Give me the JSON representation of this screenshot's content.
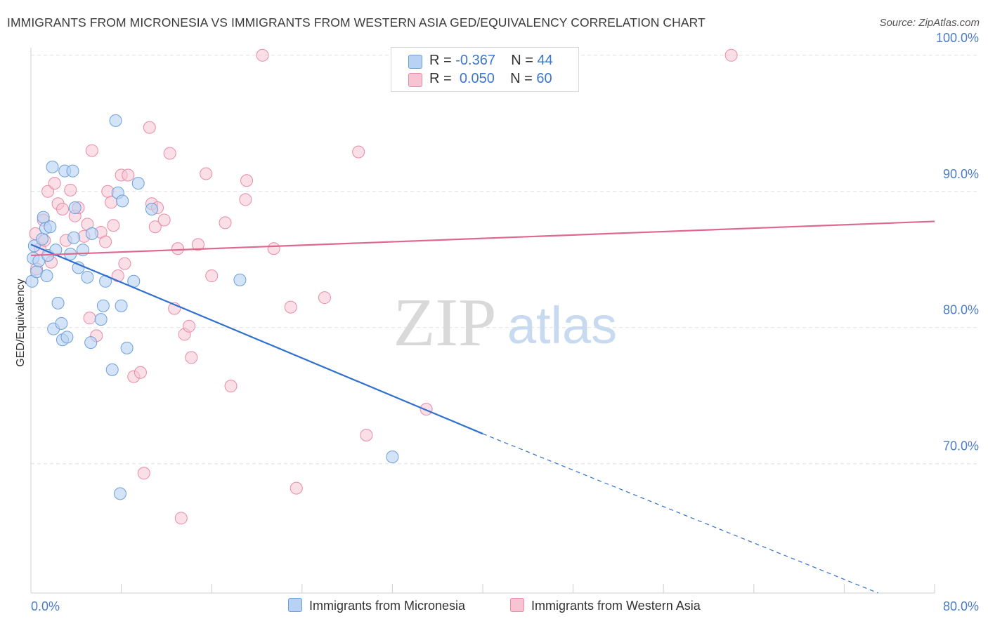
{
  "title": "IMMIGRANTS FROM MICRONESIA VS IMMIGRANTS FROM WESTERN ASIA GED/EQUIVALENCY CORRELATION CHART",
  "source": "Source: ZipAtlas.com",
  "watermark": {
    "zip": "ZIP",
    "atlas": "atlas"
  },
  "legend": {
    "rows": [
      {
        "r_label": "R =",
        "r_value": "-0.367",
        "n_label": "N =",
        "n_value": "44"
      },
      {
        "r_label": "R =",
        "r_value": "0.050",
        "n_label": "N =",
        "n_value": "60"
      }
    ]
  },
  "colors": {
    "blue_fill": "#b8d2f3",
    "blue_stroke": "#6a9fdc",
    "blue_line": "#2f6fcf",
    "pink_fill": "#f8c4d3",
    "pink_stroke": "#e88aa8",
    "pink_line": "#e0688f",
    "grid": "#e0e0e0",
    "tick_text": "#4a7cc7"
  },
  "chart_data": {
    "type": "scatter",
    "title": "IMMIGRANTS FROM MICRONESIA VS IMMIGRANTS FROM WESTERN ASIA GED/EQUIVALENCY CORRELATION CHART",
    "xlabel": "",
    "ylabel": "GED/Equivalency",
    "xlim": [
      0,
      80
    ],
    "ylim": [
      60.5,
      102
    ],
    "x_tick_labels": [
      "0.0%",
      "80.0%"
    ],
    "y_ticks": [
      70,
      80,
      90,
      100
    ],
    "y_tick_labels": [
      "70.0%",
      "80.0%",
      "90.0%",
      "100.0%"
    ],
    "grid": true,
    "legend_position": "top-center",
    "series": [
      {
        "name": "Immigrants from Micronesia",
        "points": [
          [
            0.1,
            83.4
          ],
          [
            0.2,
            85.1
          ],
          [
            0.3,
            86.0
          ],
          [
            0.5,
            84.1
          ],
          [
            0.7,
            84.9
          ],
          [
            1.0,
            86.5
          ],
          [
            1.1,
            88.1
          ],
          [
            1.3,
            87.3
          ],
          [
            1.4,
            83.8
          ],
          [
            1.5,
            85.3
          ],
          [
            1.7,
            87.4
          ],
          [
            1.9,
            91.8
          ],
          [
            2.0,
            79.9
          ],
          [
            2.2,
            85.7
          ],
          [
            2.4,
            81.8
          ],
          [
            2.7,
            80.3
          ],
          [
            2.8,
            79.1
          ],
          [
            3.0,
            91.5
          ],
          [
            3.2,
            79.3
          ],
          [
            3.5,
            85.4
          ],
          [
            3.7,
            91.5
          ],
          [
            3.8,
            86.6
          ],
          [
            3.9,
            88.8
          ],
          [
            4.2,
            84.4
          ],
          [
            4.6,
            85.7
          ],
          [
            5.0,
            83.7
          ],
          [
            5.3,
            78.9
          ],
          [
            5.4,
            86.9
          ],
          [
            6.2,
            80.6
          ],
          [
            6.4,
            81.6
          ],
          [
            6.6,
            83.4
          ],
          [
            7.2,
            76.9
          ],
          [
            7.5,
            95.2
          ],
          [
            7.7,
            89.9
          ],
          [
            7.9,
            67.8
          ],
          [
            8.0,
            81.6
          ],
          [
            8.1,
            89.3
          ],
          [
            8.5,
            78.5
          ],
          [
            9.1,
            83.4
          ],
          [
            9.5,
            90.6
          ],
          [
            10.7,
            88.7
          ],
          [
            18.5,
            83.5
          ],
          [
            32.0,
            70.5
          ],
          [
            42.0,
            100.0
          ]
        ],
        "trend": {
          "x0": 0,
          "y0": 86.1,
          "x_solid_end": 40.0,
          "y_solid_end": 72.2,
          "x1": 75,
          "y1": 60.5
        }
      },
      {
        "name": "Immigrants from Western Asia",
        "points": [
          [
            0.4,
            86.9
          ],
          [
            0.5,
            84.3
          ],
          [
            0.8,
            85.8
          ],
          [
            1.1,
            87.9
          ],
          [
            1.2,
            86.4
          ],
          [
            1.5,
            90.0
          ],
          [
            1.8,
            84.8
          ],
          [
            2.1,
            90.6
          ],
          [
            2.4,
            89.1
          ],
          [
            2.8,
            88.7
          ],
          [
            3.1,
            86.4
          ],
          [
            3.5,
            90.1
          ],
          [
            3.9,
            88.2
          ],
          [
            4.2,
            88.8
          ],
          [
            4.7,
            86.7
          ],
          [
            5.0,
            87.6
          ],
          [
            5.2,
            80.7
          ],
          [
            5.4,
            93.0
          ],
          [
            5.8,
            79.4
          ],
          [
            6.2,
            87.0
          ],
          [
            6.6,
            86.3
          ],
          [
            6.8,
            90.0
          ],
          [
            7.1,
            89.2
          ],
          [
            7.3,
            87.5
          ],
          [
            7.7,
            83.8
          ],
          [
            8.0,
            91.2
          ],
          [
            8.3,
            84.7
          ],
          [
            8.6,
            91.2
          ],
          [
            9.1,
            76.4
          ],
          [
            9.7,
            76.7
          ],
          [
            10.0,
            69.3
          ],
          [
            10.5,
            94.7
          ],
          [
            10.7,
            89.1
          ],
          [
            11.0,
            87.4
          ],
          [
            11.2,
            88.8
          ],
          [
            11.8,
            87.9
          ],
          [
            12.3,
            92.8
          ],
          [
            12.7,
            81.4
          ],
          [
            13.0,
            85.8
          ],
          [
            13.3,
            66.0
          ],
          [
            13.6,
            79.5
          ],
          [
            14.0,
            80.1
          ],
          [
            14.2,
            77.8
          ],
          [
            14.8,
            86.1
          ],
          [
            15.5,
            91.3
          ],
          [
            16.0,
            83.8
          ],
          [
            17.2,
            87.7
          ],
          [
            17.7,
            75.7
          ],
          [
            19.0,
            89.4
          ],
          [
            19.1,
            90.8
          ],
          [
            20.5,
            100.0
          ],
          [
            21.5,
            85.8
          ],
          [
            23.0,
            81.5
          ],
          [
            23.5,
            68.2
          ],
          [
            26.0,
            82.2
          ],
          [
            29.0,
            92.9
          ],
          [
            29.7,
            72.1
          ],
          [
            35.0,
            74.0
          ],
          [
            41.5,
            100.0
          ],
          [
            62.0,
            100.0
          ]
        ],
        "trend": {
          "x0": 0,
          "y0": 85.3,
          "x1": 80,
          "y1": 87.8
        }
      }
    ]
  }
}
